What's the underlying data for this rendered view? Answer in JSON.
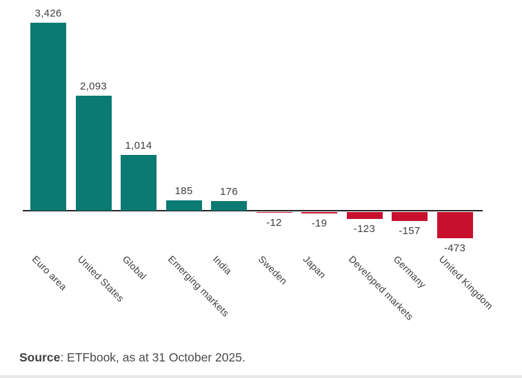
{
  "chart_data": {
    "type": "bar",
    "categories": [
      "Euro area",
      "United States",
      "Global",
      "Emerging markets",
      "India",
      "Sweden",
      "Japan",
      "Developed markets",
      "Germany",
      "United Kingdom"
    ],
    "values": [
      3426,
      2093,
      1014,
      185,
      176,
      -12,
      -19,
      -123,
      -157,
      -473
    ],
    "value_labels": [
      "3,426",
      "2,093",
      "1,014",
      "185",
      "176",
      "-12",
      "-19",
      "-123",
      "-157",
      "-473"
    ],
    "title": "",
    "xlabel": "",
    "ylabel": "",
    "ylim": [
      -600,
      3600
    ],
    "grid": false,
    "legend": "none",
    "tick_label_rotation_deg": 45,
    "colors": {
      "positive_bar": "#0B7A73",
      "negative_bar": "#C8102E",
      "label_text": "#3d3d3d",
      "axis_line": "#222222"
    }
  },
  "source": {
    "bold": "Source",
    "rest": ": ETFbook, as at 31 October 2025."
  }
}
